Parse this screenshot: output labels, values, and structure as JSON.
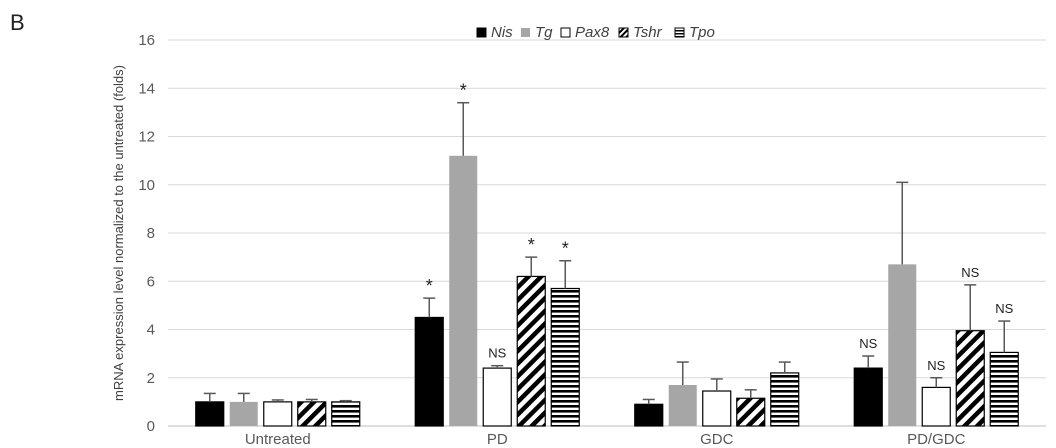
{
  "panel_label": "B",
  "chart_data": {
    "type": "bar",
    "title": "",
    "xlabel": "",
    "ylabel": "mRNA expression level normalized to the untreated (folds)",
    "ylim": [
      0,
      16
    ],
    "yticks": [
      0,
      2,
      4,
      6,
      8,
      10,
      12,
      14,
      16
    ],
    "grid": true,
    "legend_position": "top",
    "categories": [
      "Untreated",
      "PD",
      "GDC",
      "PD/GDC"
    ],
    "series": [
      {
        "name": "Nis",
        "pattern": "solid-black",
        "color": "#000000",
        "values": [
          1.0,
          4.5,
          0.9,
          2.4
        ],
        "errors": [
          0.35,
          0.8,
          0.2,
          0.5
        ],
        "annotations": [
          "",
          "*",
          "",
          "NS"
        ]
      },
      {
        "name": "Tg",
        "pattern": "solid-gray",
        "color": "#a6a6a6",
        "values": [
          1.0,
          11.2,
          1.7,
          6.7
        ],
        "errors": [
          0.35,
          2.2,
          0.95,
          3.4
        ],
        "annotations": [
          "",
          "*",
          "",
          ""
        ]
      },
      {
        "name": "Pax8",
        "pattern": "white",
        "color": "#ffffff",
        "values": [
          1.0,
          2.4,
          1.45,
          1.6
        ],
        "errors": [
          0.08,
          0.1,
          0.5,
          0.4
        ],
        "annotations": [
          "",
          "NS",
          "",
          "NS"
        ]
      },
      {
        "name": "Tshr",
        "pattern": "diagonal-stripes",
        "color": "#000000",
        "values": [
          1.0,
          6.2,
          1.15,
          3.95
        ],
        "errors": [
          0.1,
          0.8,
          0.35,
          1.9
        ],
        "annotations": [
          "",
          "*",
          "",
          "NS"
        ]
      },
      {
        "name": "Tpo",
        "pattern": "horizontal-stripes",
        "color": "#000000",
        "values": [
          1.0,
          5.7,
          2.2,
          3.05
        ],
        "errors": [
          0.05,
          1.15,
          0.45,
          1.3
        ],
        "annotations": [
          "",
          "*",
          "",
          "NS"
        ]
      }
    ]
  }
}
